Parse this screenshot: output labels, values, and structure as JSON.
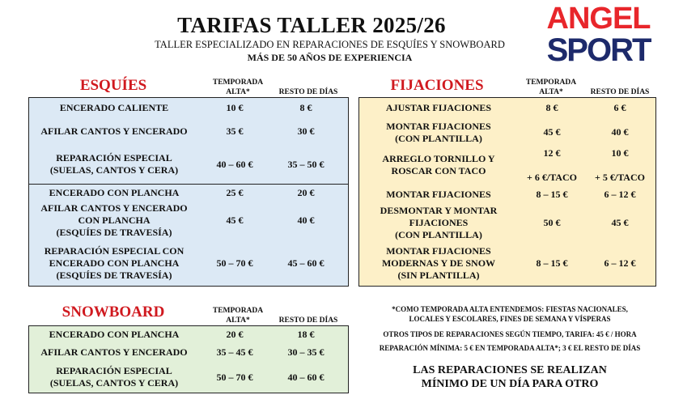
{
  "header": {
    "title": "TARIFAS TALLER 2025/26",
    "subtitle": "TALLER ESPECIALIZADO EN REPARACIONES DE ESQUÍES Y SNOWBOARD",
    "tagline": "MÁS DE 50 AÑOS DE EXPERIENCIA"
  },
  "logo": {
    "line1": "ANGEL",
    "line2": "SPORT",
    "colors": {
      "angel": "#e8262b",
      "sport": "#1d2a6b"
    }
  },
  "columns": {
    "alta": "TEMPORADA ALTA*",
    "resto": "RESTO DE DÍAS"
  },
  "esquies": {
    "title": "ESQUÍES",
    "bg": "#dce9f5",
    "rows": [
      {
        "label": "ENCERADO CALIENTE",
        "alta": "10 €",
        "resto": "8 €"
      },
      {
        "label": "AFILAR CANTOS Y ENCERADO",
        "alta": "35 €",
        "resto": "30 €"
      },
      {
        "label": "REPARACIÓN ESPECIAL\n(SUELAS, CANTOS Y CERA)",
        "alta": "40 – 60 €",
        "resto": "35 – 50 €"
      },
      {
        "label": "ENCERADO CON PLANCHA",
        "alta": "25 €",
        "resto": "20 €"
      },
      {
        "label": "AFILAR CANTOS Y ENCERADO\nCON PLANCHA\n(ESQUÍES DE TRAVESÍA)",
        "alta": "45 €",
        "resto": "40 €"
      },
      {
        "label": "REPARACIÓN ESPECIAL CON\nENCERADO CON PLANCHA\n(ESQUÍES DE TRAVESÍA)",
        "alta": "50 – 70 €",
        "resto": "45 – 60 €"
      }
    ]
  },
  "fijaciones": {
    "title": "FIJACIONES",
    "bg": "#fdf0c8",
    "rows": [
      {
        "label": "AJUSTAR FIJACIONES",
        "alta": "8 €",
        "resto": "6 €"
      },
      {
        "label": "MONTAR FIJACIONES\n(CON PLANTILLA)",
        "alta": "45 €",
        "resto": "40 €"
      },
      {
        "label": "ARREGLO TORNILLO Y\nROSCAR CON TACO",
        "alta": "12 €\n\n+ 6 €/TACO",
        "resto": "10 €\n\n+ 5 €/TACO"
      },
      {
        "label": "MONTAR FIJACIONES",
        "alta": "8 – 15 €",
        "resto": "6 – 12 €"
      },
      {
        "label": "DESMONTAR Y MONTAR\nFIJACIONES\n(CON PLANTILLA)",
        "alta": "50 €",
        "resto": "45 €"
      },
      {
        "label": "MONTAR FIJACIONES\nMODERNAS Y DE SNOW\n(SIN PLANTILLA)",
        "alta": "8 – 15 €",
        "resto": "6 – 12 €"
      }
    ]
  },
  "snowboard": {
    "title": "SNOWBOARD",
    "bg": "#e2f0d9",
    "rows": [
      {
        "label": "ENCERADO CON PLANCHA",
        "alta": "20 €",
        "resto": "18 €"
      },
      {
        "label": "AFILAR CANTOS Y ENCERADO",
        "alta": "35 – 45 €",
        "resto": "30 – 35 €"
      },
      {
        "label": "REPARACIÓN ESPECIAL\n(SUELAS, CANTOS Y CERA)",
        "alta": "50 – 70 €",
        "resto": "40 – 60 €"
      }
    ]
  },
  "notes": {
    "alta_def": "*COMO TEMPORADA ALTA ENTENDEMOS: FIESTAS NACIONALES,\nLOCALES Y ESCOLARES, FINES DE SEMANA Y VÍSPERAS",
    "otros": "OTROS TIPOS DE REPARACIONES SEGÚN TIEMPO, TARIFA: 45 € / HORA",
    "minima": "REPARACIÓN MÍNIMA: 5 € EN TEMPORADA ALTA*; 3 € EL RESTO DE DÍAS",
    "plazo": "LAS REPARACIONES SE REALIZAN\nMÍNIMO DE UN DÍA PARA OTRO"
  }
}
